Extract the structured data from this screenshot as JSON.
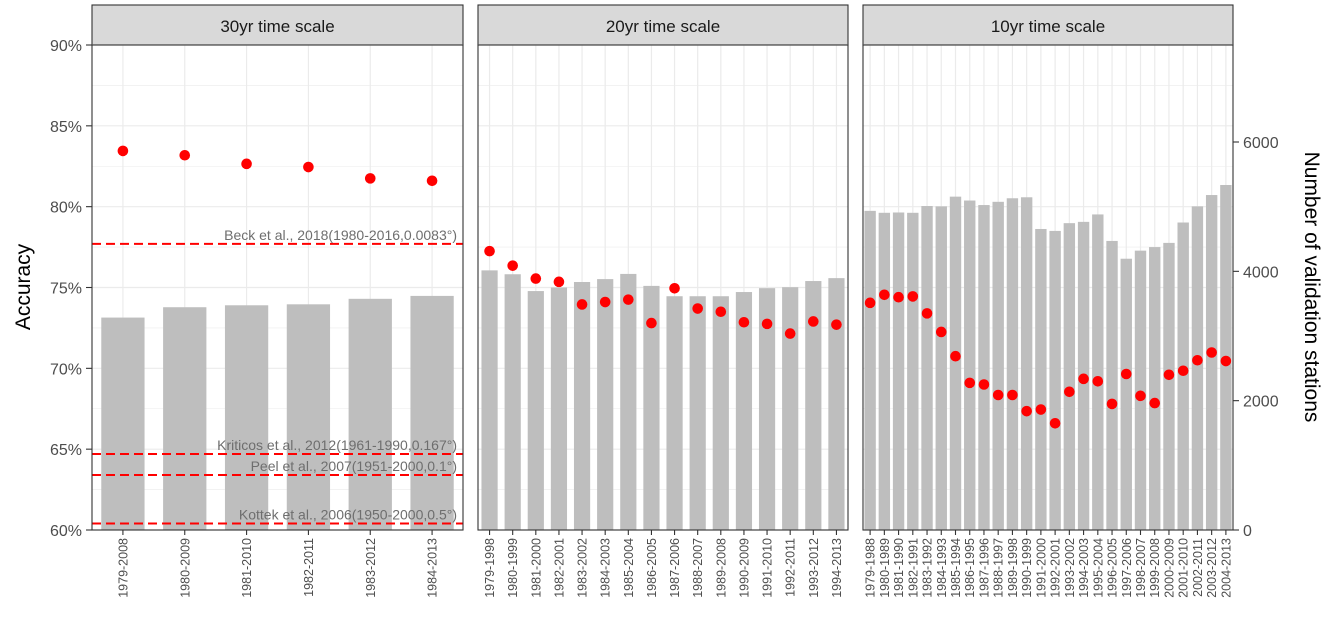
{
  "chart_data": {
    "type": "bar",
    "ylabel_left": "Accuracy",
    "ylabel_right": "Number of validation stations",
    "left_axis": {
      "range": [
        0.6,
        0.9
      ],
      "ticks": [
        "60%",
        "65%",
        "70%",
        "75%",
        "80%",
        "85%",
        "90%"
      ],
      "tick_values": [
        0.6,
        0.65,
        0.7,
        0.75,
        0.8,
        0.85,
        0.9
      ]
    },
    "right_axis": {
      "range": [
        0,
        7500
      ],
      "ticks": [
        "0",
        "2000",
        "4000",
        "6000"
      ],
      "tick_values": [
        0,
        2000,
        4000,
        6000
      ]
    },
    "grid": true,
    "colors": {
      "bars": "#bebebe",
      "points": "#ff0000",
      "reference_lines": "#ff0000",
      "strip_fill": "#d9d9d9",
      "grid": "#ebebeb",
      "reference_label": "#6e6e6e"
    },
    "reference_lines": [
      {
        "label": "Beck et al., 2018(1980-2016,0.0083°)",
        "value": 0.777
      },
      {
        "label": "Kriticos et al., 2012(1961-1990,0.167°)",
        "value": 0.647
      },
      {
        "label": "Peel et al., 2007(1951-2000,0.1°)",
        "value": 0.634
      },
      {
        "label": "Kottek et al., 2006(1950-2000,0.5°)",
        "value": 0.604
      }
    ],
    "panels": [
      {
        "title": "30yr time scale",
        "categories": [
          "1979-2008",
          "1980-2009",
          "1981-2010",
          "1982-2011",
          "1983-2012",
          "1984-2013"
        ],
        "stations": [
          3285,
          3445,
          3475,
          3490,
          3575,
          3620
        ],
        "accuracy": [
          0.8345,
          0.8318,
          0.8265,
          0.8245,
          0.8175,
          0.816
        ],
        "bar_width_fraction": 0.7
      },
      {
        "title": "20yr time scale",
        "categories": [
          "1979-1998",
          "1980-1999",
          "1981-2000",
          "1982-2001",
          "1983-2002",
          "1984-2003",
          "1985-2004",
          "1986-2005",
          "1987-2006",
          "1988-2007",
          "1989-2008",
          "1990-2009",
          "1991-2010",
          "1992-2011",
          "1993-2012",
          "1994-2013"
        ],
        "stations": [
          4015,
          3955,
          3695,
          3750,
          3835,
          3880,
          3960,
          3775,
          3615,
          3615,
          3615,
          3680,
          3740,
          3755,
          3850,
          3895
        ],
        "accuracy": [
          0.7725,
          0.7635,
          0.7555,
          0.7535,
          0.7395,
          0.741,
          0.7425,
          0.728,
          0.7495,
          0.737,
          0.735,
          0.7285,
          0.7275,
          0.7215,
          0.729,
          0.727
        ],
        "bar_width_fraction": 0.7
      },
      {
        "title": "10yr time scale",
        "categories": [
          "1979-1988",
          "1980-1989",
          "1981-1990",
          "1982-1991",
          "1983-1992",
          "1984-1993",
          "1985-1994",
          "1986-1995",
          "1987-1996",
          "1988-1997",
          "1989-1998",
          "1990-1999",
          "1991-2000",
          "1992-2001",
          "1993-2002",
          "1994-2003",
          "1995-2004",
          "1996-2005",
          "1997-2006",
          "1998-2007",
          "1999-2008",
          "2000-2009",
          "2001-2010",
          "2002-2011",
          "2003-2012",
          "2004-2013"
        ],
        "stations": [
          4935,
          4905,
          4910,
          4905,
          5010,
          5005,
          5155,
          5095,
          5025,
          5075,
          5130,
          5145,
          4655,
          4625,
          4745,
          4765,
          4880,
          4470,
          4195,
          4320,
          4375,
          4440,
          4755,
          5005,
          5180,
          5335
        ],
        "accuracy": [
          0.7405,
          0.7455,
          0.744,
          0.7445,
          0.734,
          0.7225,
          0.7075,
          0.691,
          0.69,
          0.6835,
          0.6835,
          0.6735,
          0.6745,
          0.666,
          0.6855,
          0.6935,
          0.692,
          0.678,
          0.6965,
          0.683,
          0.6785,
          0.696,
          0.6985,
          0.705,
          0.7098,
          0.7045
        ],
        "bar_width_fraction": 0.8
      }
    ]
  }
}
